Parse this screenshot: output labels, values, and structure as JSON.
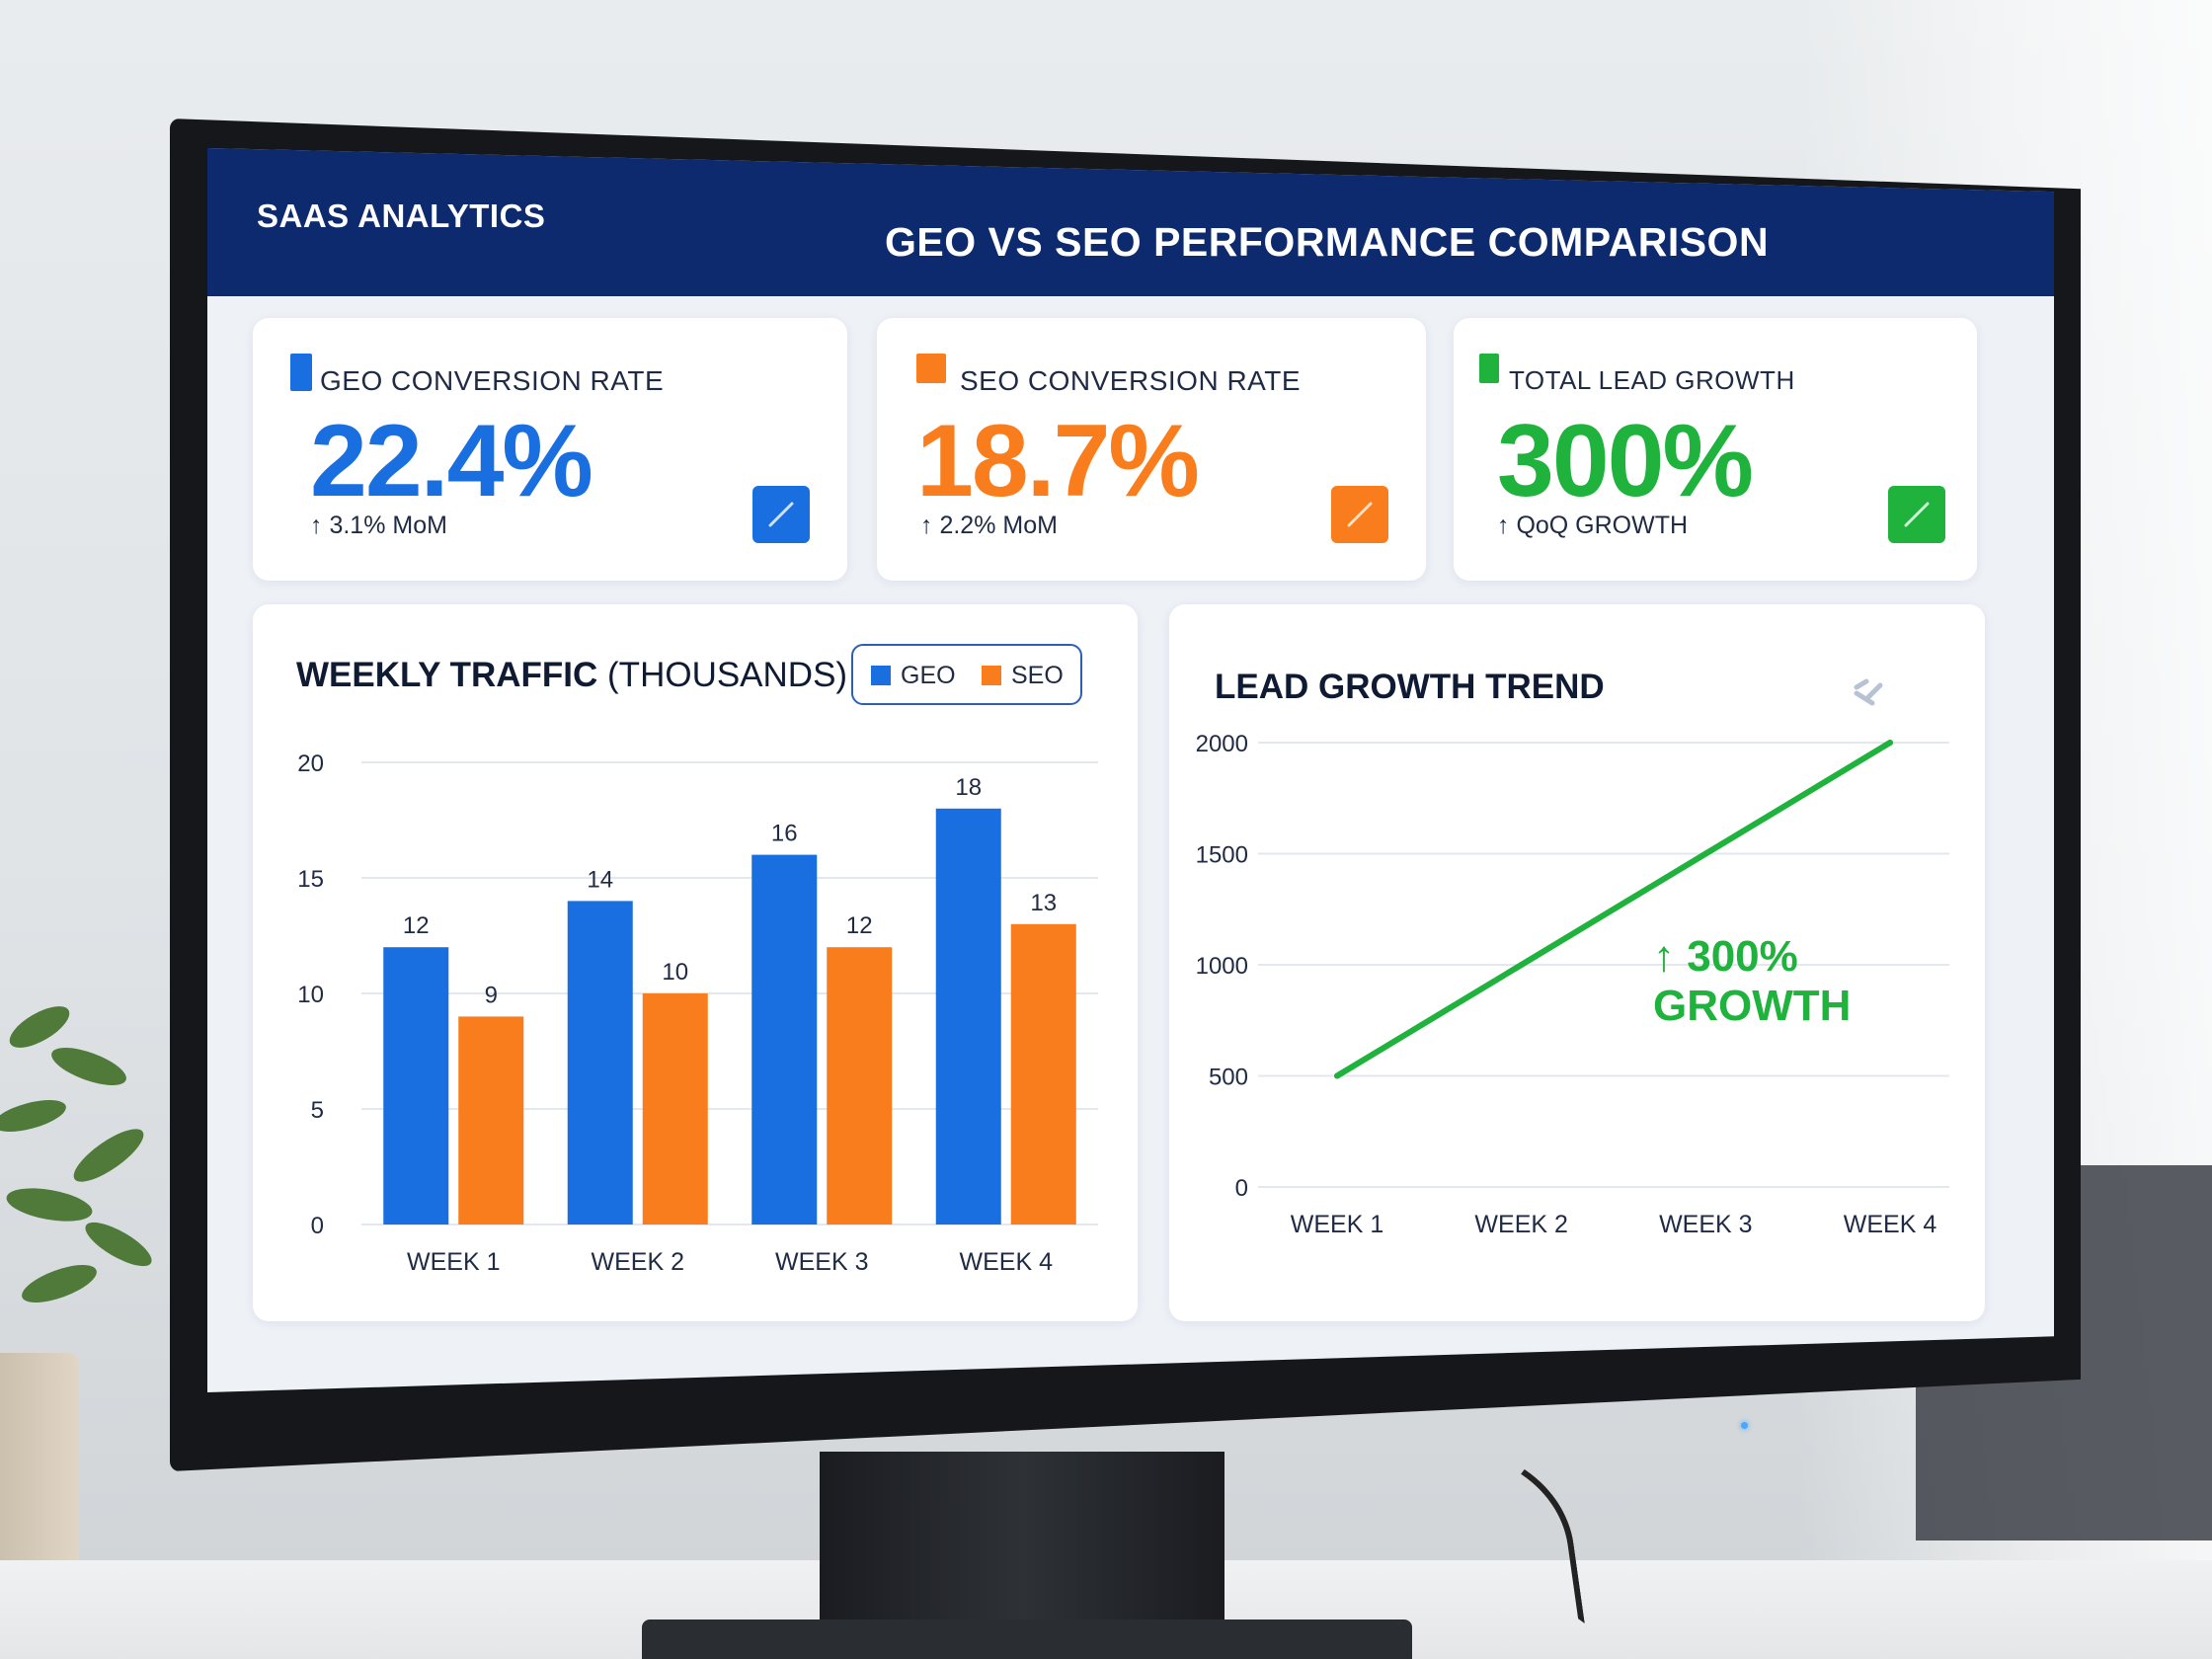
{
  "header": {
    "brand": "SAAS ANALYTICS",
    "title": "GEO VS SEO PERFORMANCE COMPARISON"
  },
  "kpis": [
    {
      "label": "GEO CONVERSION RATE",
      "value": "22.4%",
      "change": "↑ 3.1% MoM",
      "color": "#1a6fe0"
    },
    {
      "label": "SEO CONVERSION RATE",
      "value": "18.7%",
      "change": "↑ 2.2% MoM",
      "color": "#f97d1c"
    },
    {
      "label": "TOTAL LEAD GROWTH",
      "value": "300%",
      "change": "↑ QoQ GROWTH",
      "color": "#1fb23c"
    }
  ],
  "icons": {
    "kpi_icon": "trend-arrow-icon"
  },
  "weekly_chart": {
    "title": "WEEKLY TRAFFIC",
    "subtitle": "(THOUSANDS)",
    "legend": {
      "geo": "GEO",
      "seo": "SEO"
    }
  },
  "lead_chart": {
    "title": "LEAD GROWTH TREND",
    "annotation_line1": "↑ 300%",
    "annotation_line2": "GROWTH"
  },
  "chart_data": [
    {
      "type": "bar",
      "title": "WEEKLY TRAFFIC (THOUSANDS)",
      "categories": [
        "WEEK 1",
        "WEEK 2",
        "WEEK 3",
        "WEEK 4"
      ],
      "series": [
        {
          "name": "GEO",
          "values": [
            12,
            14,
            16,
            18
          ],
          "color": "#1a6fe0"
        },
        {
          "name": "SEO",
          "values": [
            9,
            10,
            12,
            13
          ],
          "color": "#f97d1c"
        }
      ],
      "yticks": [
        0,
        5,
        10,
        15,
        20
      ],
      "ylim": [
        0,
        20
      ],
      "grid": true,
      "legend": "top-right"
    },
    {
      "type": "line",
      "title": "LEAD GROWTH TREND",
      "categories": [
        "WEEK 1",
        "WEEK 2",
        "WEEK 3",
        "WEEK 4"
      ],
      "series": [
        {
          "values": [
            500,
            1000,
            1500,
            2000
          ],
          "color": "#1fb23c"
        }
      ],
      "yticks": [
        0,
        500,
        1000,
        1500,
        2000
      ],
      "ylim": [
        0,
        2000
      ],
      "grid": true
    }
  ]
}
